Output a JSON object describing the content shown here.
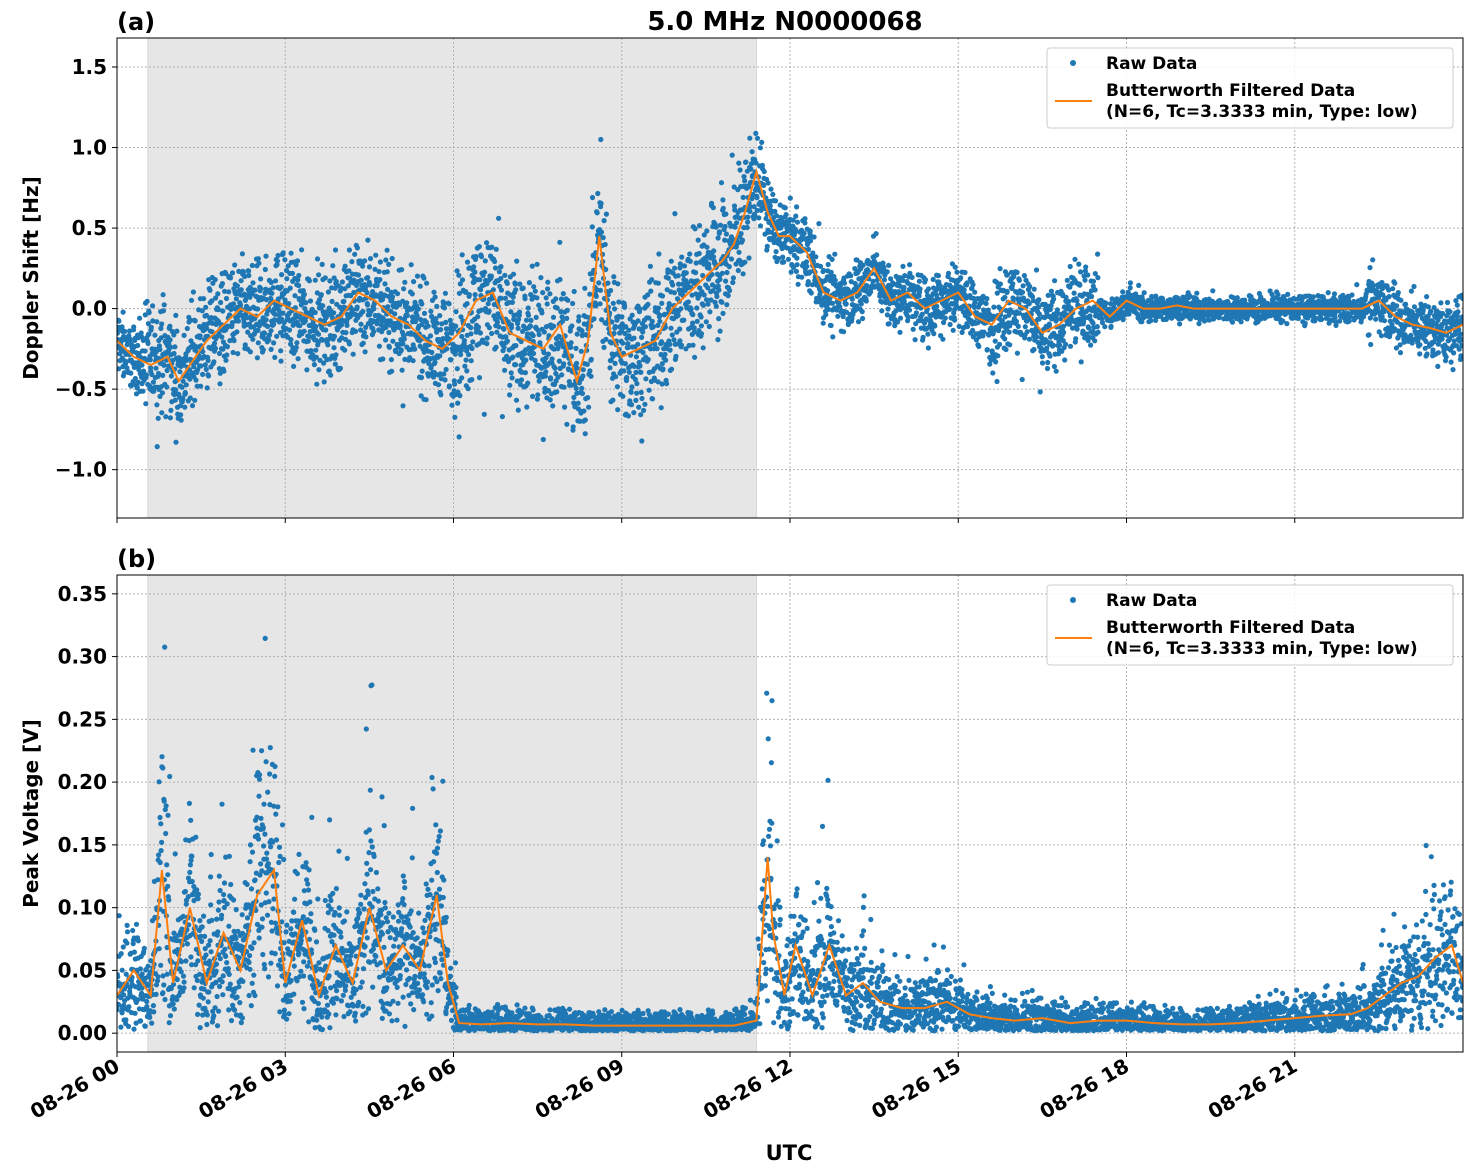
{
  "figure": {
    "title": "5.0 MHz N0000068",
    "xlabel": "UTC"
  },
  "chart_data": [
    {
      "panel_label": "(a)",
      "type": "scatter",
      "ylabel": "Doppler Shift [Hz]",
      "xlim": [
        0,
        24
      ],
      "ylim": [
        -1.3,
        1.68
      ],
      "yticks": [
        -1.0,
        -0.5,
        0.0,
        0.5,
        1.0,
        1.5
      ],
      "ytick_labels": [
        "−1.0",
        "−0.5",
        "0.0",
        "0.5",
        "1.0",
        "1.5"
      ],
      "xticks": [
        0,
        3,
        6,
        9,
        12,
        15,
        18,
        21
      ],
      "xtick_labels": [
        "08-26 00",
        "08-26 03",
        "08-26 06",
        "08-26 09",
        "08-26 12",
        "08-26 15",
        "08-26 18",
        "08-26 21"
      ],
      "grid": true,
      "legend_position": "top-right",
      "shaded_region": [
        0.55,
        11.4
      ],
      "series": [
        {
          "name": "Raw Data",
          "kind": "points",
          "color": "#1f77b4"
        },
        {
          "name": "Butterworth Filtered Data\n(N=6, Tc=3.3333 min, Type: low)",
          "kind": "line",
          "color": "#ff7f0e"
        }
      ],
      "filtered": {
        "x": [
          0.0,
          0.3,
          0.6,
          0.9,
          1.1,
          1.3,
          1.6,
          1.9,
          2.2,
          2.5,
          2.8,
          3.1,
          3.4,
          3.7,
          4.0,
          4.3,
          4.6,
          4.9,
          5.2,
          5.5,
          5.8,
          6.1,
          6.4,
          6.7,
          7.0,
          7.3,
          7.6,
          7.9,
          8.2,
          8.4,
          8.6,
          8.8,
          9.0,
          9.3,
          9.6,
          9.9,
          10.2,
          10.5,
          10.8,
          11.0,
          11.2,
          11.4,
          11.6,
          11.8,
          12.0,
          12.3,
          12.6,
          12.9,
          13.2,
          13.5,
          13.8,
          14.1,
          14.4,
          14.7,
          15.0,
          15.3,
          15.6,
          15.9,
          16.2,
          16.5,
          16.8,
          17.1,
          17.4,
          17.7,
          18.0,
          18.3,
          18.6,
          18.9,
          19.2,
          19.5,
          19.8,
          20.1,
          20.4,
          20.7,
          21.0,
          21.3,
          21.6,
          21.9,
          22.2,
          22.5,
          22.8,
          23.1,
          23.4,
          23.7,
          24.0
        ],
        "y": [
          -0.2,
          -0.3,
          -0.35,
          -0.3,
          -0.45,
          -0.35,
          -0.2,
          -0.1,
          0.0,
          -0.05,
          0.05,
          0.0,
          -0.05,
          -0.1,
          -0.05,
          0.1,
          0.05,
          -0.05,
          -0.1,
          -0.2,
          -0.25,
          -0.15,
          0.05,
          0.1,
          -0.15,
          -0.2,
          -0.25,
          -0.1,
          -0.45,
          -0.2,
          0.45,
          -0.15,
          -0.3,
          -0.25,
          -0.2,
          0.0,
          0.1,
          0.2,
          0.3,
          0.4,
          0.6,
          0.85,
          0.6,
          0.45,
          0.45,
          0.35,
          0.1,
          0.05,
          0.1,
          0.25,
          0.05,
          0.1,
          0.0,
          0.05,
          0.1,
          -0.05,
          -0.1,
          0.05,
          0.0,
          -0.15,
          -0.1,
          0.0,
          0.05,
          -0.05,
          0.05,
          0.0,
          0.0,
          0.02,
          0.0,
          0.0,
          0.0,
          0.0,
          0.0,
          0.0,
          0.0,
          0.0,
          0.0,
          0.0,
          0.0,
          0.05,
          -0.05,
          -0.1,
          -0.12,
          -0.15,
          -0.1
        ]
      }
    },
    {
      "panel_label": "(b)",
      "type": "scatter",
      "ylabel": "Peak Voltage [V]",
      "xlim": [
        0,
        24
      ],
      "ylim": [
        -0.015,
        0.365
      ],
      "yticks": [
        0.0,
        0.05,
        0.1,
        0.15,
        0.2,
        0.25,
        0.3,
        0.35
      ],
      "ytick_labels": [
        "0.00",
        "0.05",
        "0.10",
        "0.15",
        "0.20",
        "0.25",
        "0.30",
        "0.35"
      ],
      "xticks": [
        0,
        3,
        6,
        9,
        12,
        15,
        18,
        21
      ],
      "xtick_labels": [
        "08-26 00",
        "08-26 03",
        "08-26 06",
        "08-26 09",
        "08-26 12",
        "08-26 15",
        "08-26 18",
        "08-26 21"
      ],
      "grid": true,
      "legend_position": "top-right",
      "shaded_region": [
        0.55,
        11.4
      ],
      "series": [
        {
          "name": "Raw Data",
          "kind": "points",
          "color": "#1f77b4"
        },
        {
          "name": "Butterworth Filtered Data\n(N=6, Tc=3.3333 min, Type: low)",
          "kind": "line",
          "color": "#ff7f0e"
        }
      ],
      "filtered": {
        "x": [
          0.0,
          0.3,
          0.6,
          0.8,
          1.0,
          1.3,
          1.6,
          1.9,
          2.2,
          2.5,
          2.8,
          3.0,
          3.3,
          3.6,
          3.9,
          4.2,
          4.5,
          4.8,
          5.1,
          5.4,
          5.7,
          5.9,
          6.1,
          6.5,
          7.0,
          7.5,
          8.0,
          8.5,
          9.0,
          9.5,
          10.0,
          10.5,
          11.0,
          11.4,
          11.6,
          11.7,
          11.9,
          12.1,
          12.4,
          12.7,
          13.0,
          13.3,
          13.6,
          14.0,
          14.4,
          14.8,
          15.2,
          15.6,
          16.0,
          16.5,
          17.0,
          17.5,
          18.0,
          18.5,
          19.0,
          19.5,
          20.0,
          20.5,
          21.0,
          21.5,
          22.0,
          22.3,
          22.6,
          22.9,
          23.2,
          23.5,
          23.8,
          24.0
        ],
        "y": [
          0.03,
          0.05,
          0.03,
          0.13,
          0.04,
          0.1,
          0.04,
          0.08,
          0.05,
          0.11,
          0.13,
          0.04,
          0.09,
          0.03,
          0.07,
          0.04,
          0.1,
          0.05,
          0.07,
          0.05,
          0.11,
          0.04,
          0.008,
          0.007,
          0.008,
          0.007,
          0.007,
          0.006,
          0.006,
          0.006,
          0.006,
          0.006,
          0.006,
          0.01,
          0.14,
          0.08,
          0.03,
          0.07,
          0.03,
          0.07,
          0.03,
          0.04,
          0.025,
          0.02,
          0.02,
          0.025,
          0.015,
          0.012,
          0.01,
          0.012,
          0.008,
          0.01,
          0.01,
          0.008,
          0.007,
          0.007,
          0.008,
          0.01,
          0.012,
          0.014,
          0.015,
          0.02,
          0.03,
          0.04,
          0.045,
          0.06,
          0.07,
          0.04
        ]
      }
    }
  ]
}
